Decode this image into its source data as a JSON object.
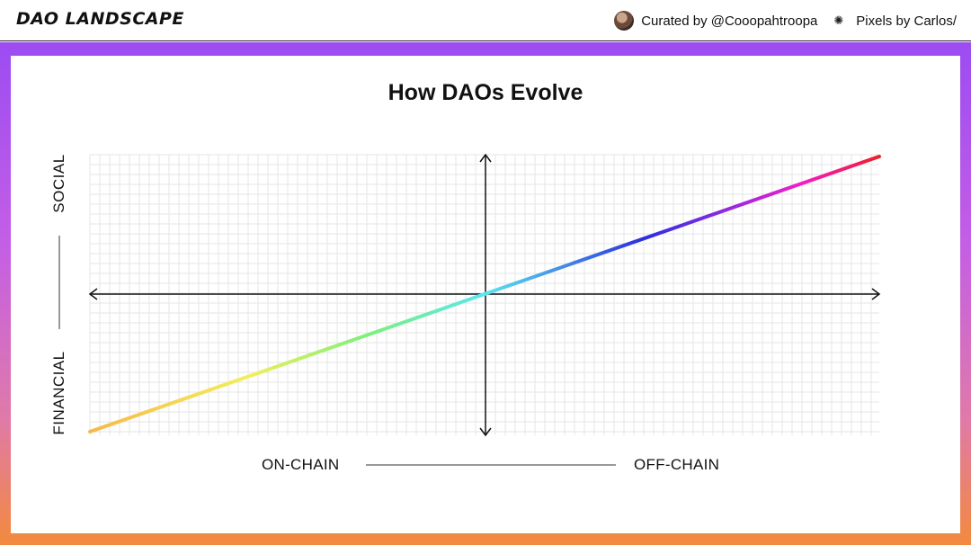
{
  "header": {
    "brand": "DAO LANDSCAPE",
    "curated": "Curated by @Cooopahtroopa",
    "pixels": "Pixels by Carlos/",
    "avatar_icon": "avatar",
    "separator_icon": "sun-icon"
  },
  "diagram": {
    "title": "How DAOs Evolve",
    "x_left": "ON-CHAIN",
    "x_right": "OFF-CHAIN",
    "y_top": "SOCIAL",
    "y_bottom": "FINANCIAL",
    "line_gradient": [
      "#f7b84b",
      "#f2ef5a",
      "#7ef07a",
      "#5be6f0",
      "#2b2fe0",
      "#8a2be2",
      "#f21ec8",
      "#f01e2c"
    ]
  },
  "colors": {
    "frame_top": "#9c4cf2",
    "frame_bottom": "#f28a3e"
  }
}
